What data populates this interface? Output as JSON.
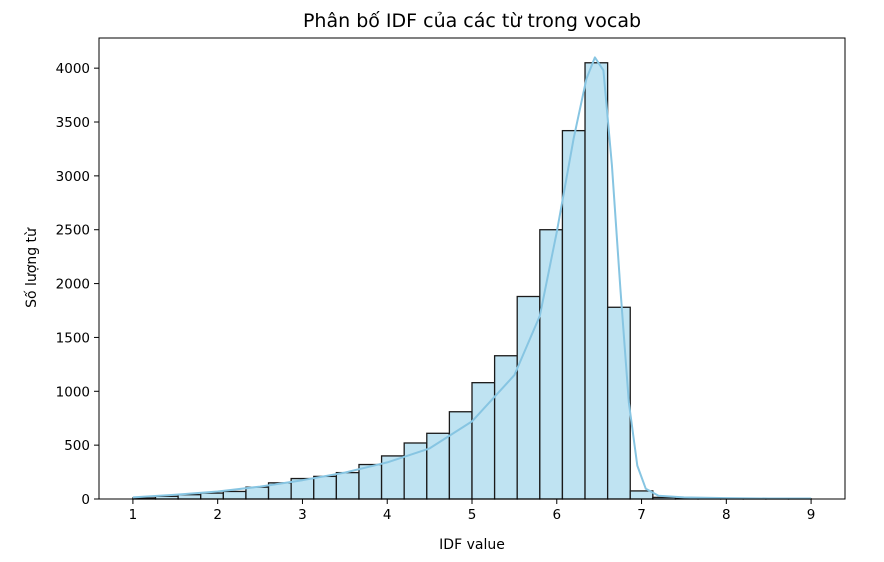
{
  "chart_data": {
    "type": "bar",
    "title": "Phân bố IDF của các từ trong vocab",
    "xlabel": "IDF value",
    "ylabel": "Số lượng từ",
    "xlim": [
      0.6,
      9.4
    ],
    "ylim": [
      0,
      4280
    ],
    "xticks": [
      1,
      2,
      3,
      4,
      5,
      6,
      7,
      8,
      9
    ],
    "yticks": [
      0,
      500,
      1000,
      1500,
      2000,
      2500,
      3000,
      3500,
      4000
    ],
    "bin_edges": [
      1.0,
      1.2667,
      1.5333,
      1.8,
      2.0667,
      2.3333,
      2.6,
      2.8667,
      3.1333,
      3.4,
      3.6667,
      3.9333,
      4.2,
      4.4667,
      4.7333,
      5.0,
      5.2667,
      5.5333,
      5.8,
      6.0667,
      6.3333,
      6.6,
      6.8667,
      7.1333,
      7.4,
      7.6667,
      7.9333,
      8.2,
      8.4667,
      8.7333,
      9.0
    ],
    "values": [
      10,
      25,
      40,
      55,
      70,
      110,
      150,
      190,
      210,
      245,
      320,
      400,
      520,
      610,
      810,
      1080,
      1330,
      1880,
      2500,
      3420,
      4050,
      1780,
      75,
      15,
      5,
      3,
      2,
      2,
      2,
      2
    ],
    "kde": {
      "x": [
        1.0,
        1.5,
        2.0,
        2.5,
        3.0,
        3.5,
        4.0,
        4.5,
        5.0,
        5.5,
        5.8,
        6.0,
        6.2,
        6.35,
        6.45,
        6.55,
        6.65,
        6.75,
        6.85,
        6.95,
        7.05,
        7.2,
        7.5,
        8.0,
        8.5,
        9.0
      ],
      "y": [
        15,
        40,
        70,
        115,
        175,
        245,
        340,
        470,
        720,
        1150,
        1700,
        2480,
        3350,
        3900,
        4100,
        3980,
        3100,
        1950,
        900,
        310,
        95,
        30,
        15,
        8,
        5,
        5
      ]
    },
    "colors": {
      "bar_fill": "#bfe3f2",
      "bar_edge": "#1a1a1a",
      "kde_line": "#87c5e2"
    },
    "grid": false,
    "legend": "none"
  }
}
